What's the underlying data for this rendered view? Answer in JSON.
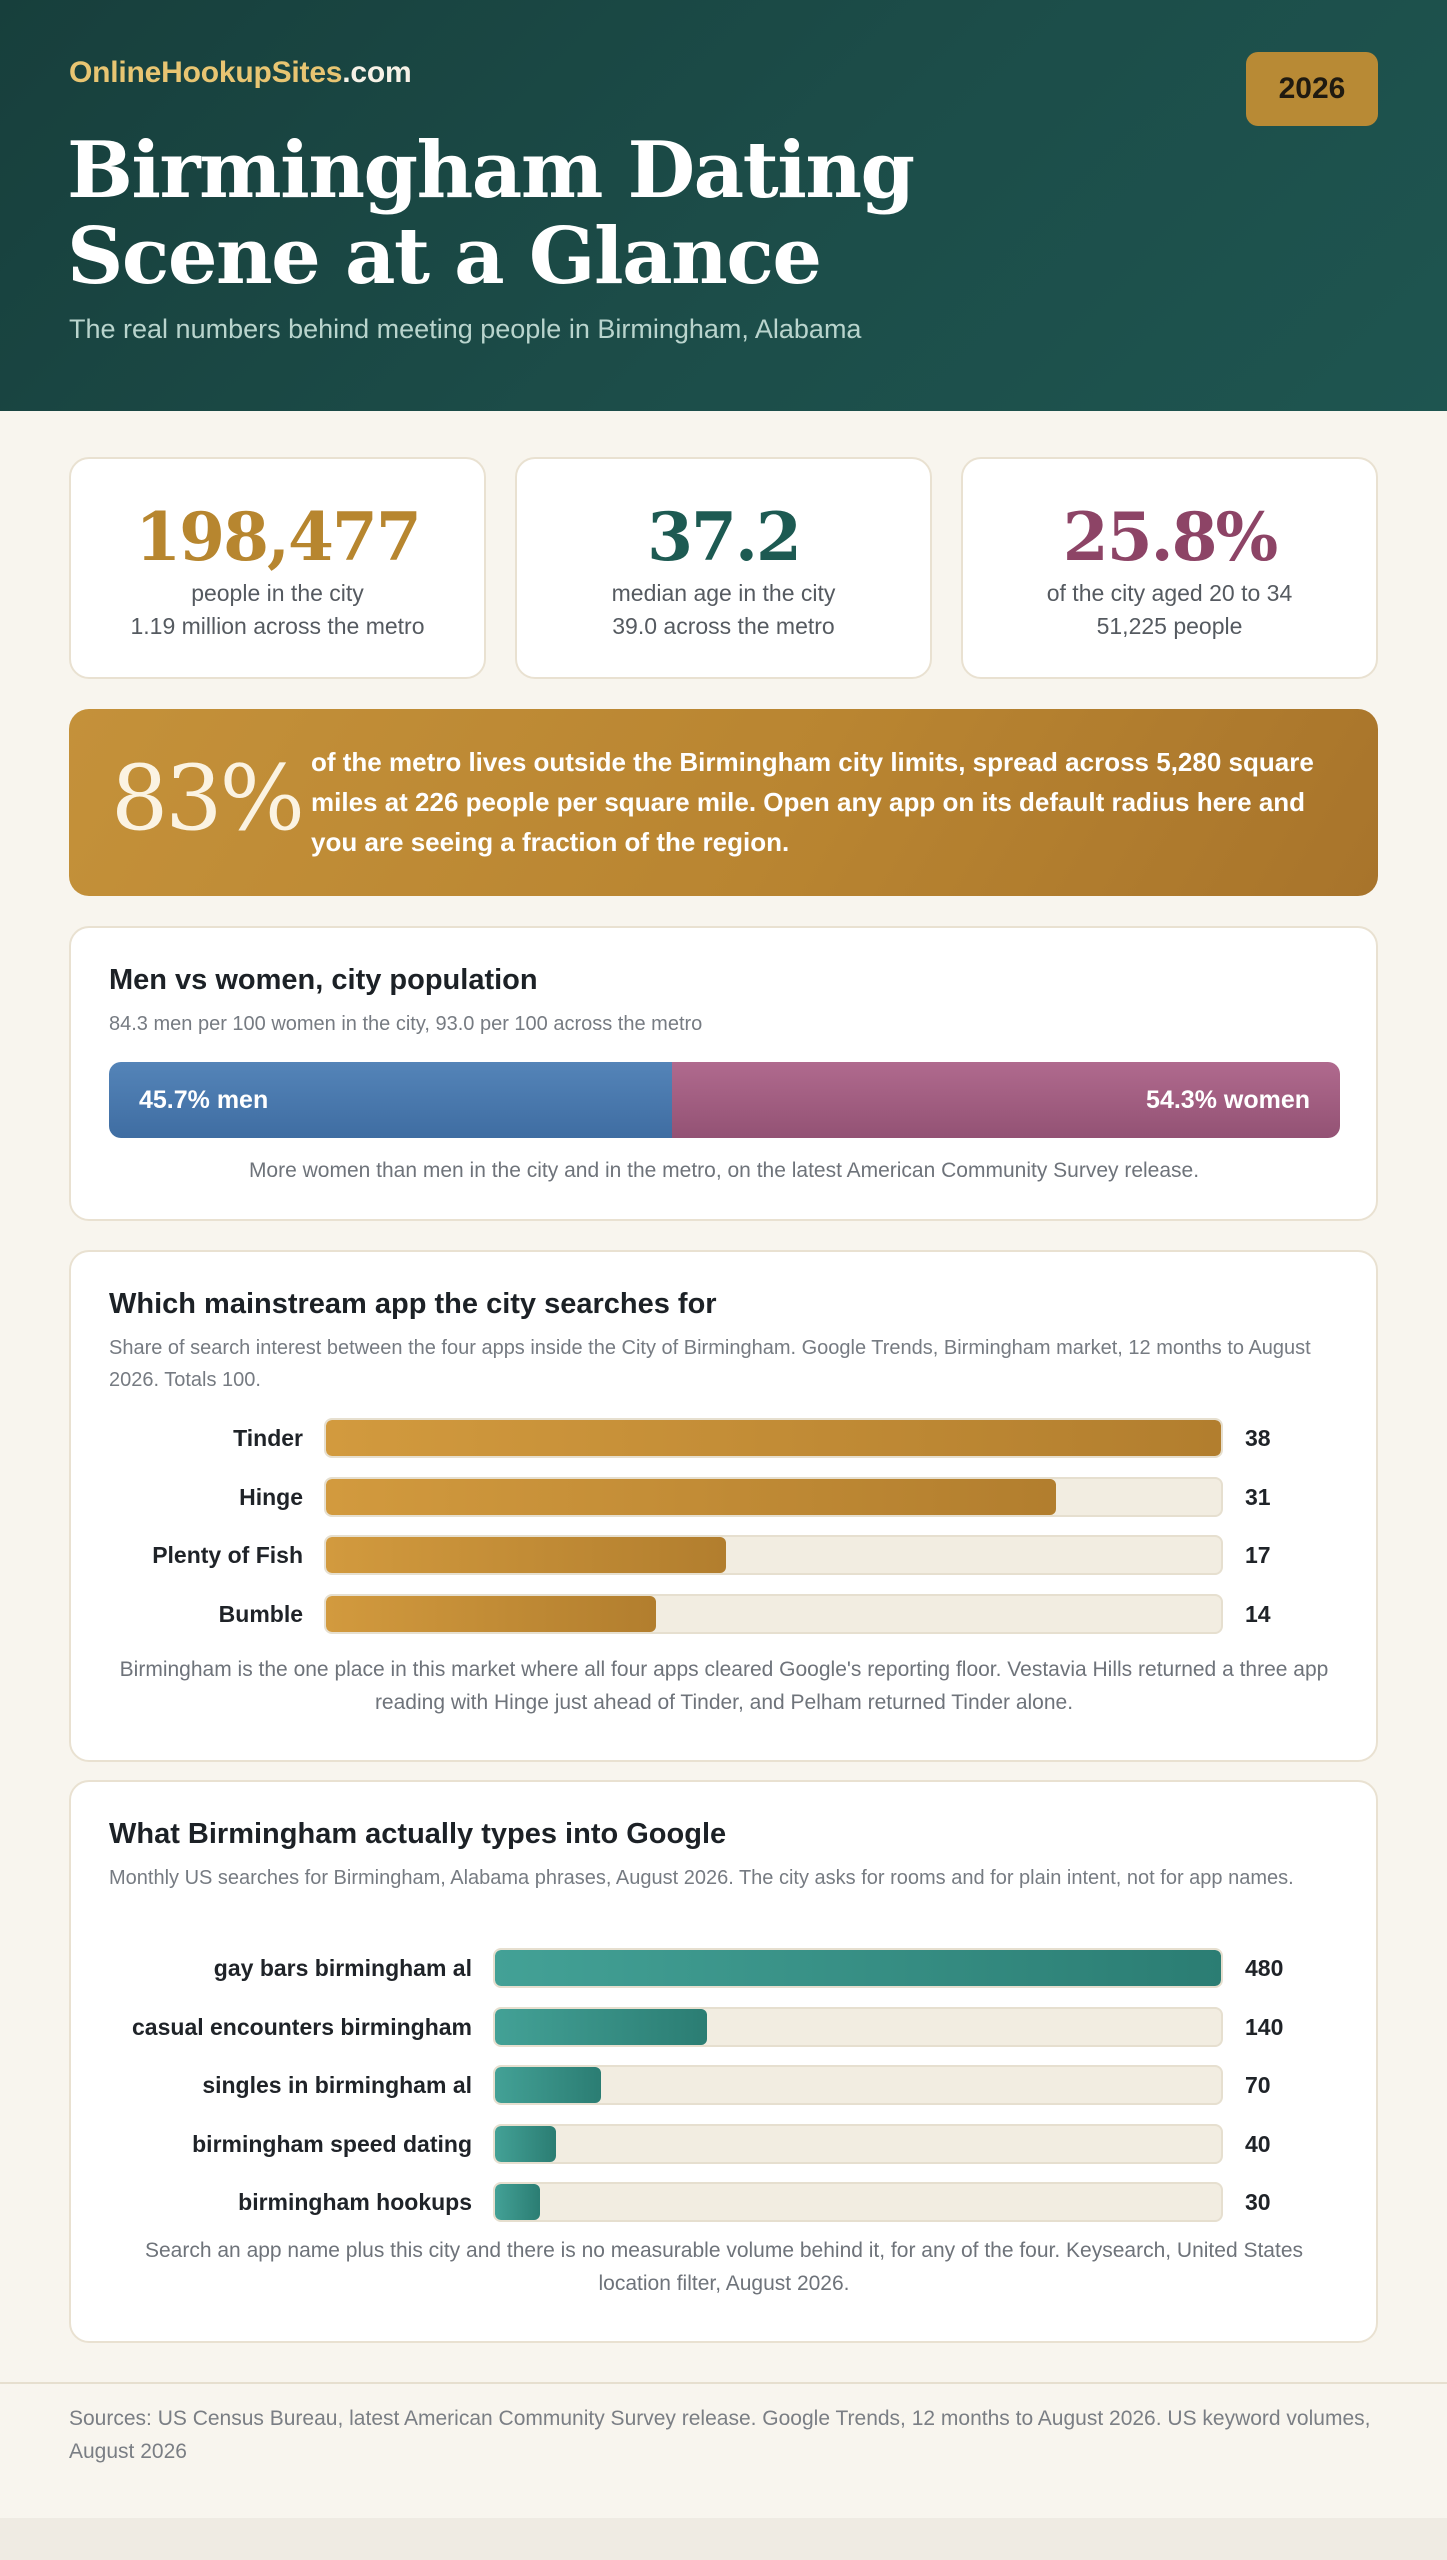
{
  "header": {
    "brand_part1": "OnlineHookupSites",
    "brand_part2": ".com",
    "year": "2026",
    "title_line1": "Birmingham Dating",
    "title_line2": "Scene at a Glance",
    "subtitle": "The real numbers behind meeting people in Birmingham, Alabama"
  },
  "stats": [
    {
      "value": "198,477",
      "line1": "people in the city",
      "line2": "1.19 million across the metro",
      "color": "#b7862f"
    },
    {
      "value": "37.2",
      "line1": "median age in the city",
      "line2": "39.0 across the metro",
      "color": "#1d5a52"
    },
    {
      "value": "25.8%",
      "line1": "of the city aged 20 to 34",
      "line2": "51,225 people",
      "color": "#8d4466"
    }
  ],
  "callout": {
    "value": "83%",
    "text": "of the metro lives outside the Birmingham city limits, spread across 5,280 square miles at 226 people per square mile. Open any app on its default radius here and you are seeing a fraction of the region."
  },
  "colors": {
    "gold": "#c4913a",
    "teal": "#2b7d73",
    "men": "#4a78ad",
    "women": "#a15f82",
    "header_bg": "#173f3c"
  },
  "chart_data": [
    {
      "type": "bar",
      "orientation": "horizontal-stacked",
      "title": "Men vs women, city population",
      "subtitle": "84.3 men per 100 women in the city, 93.0 per 100 across the metro",
      "categories": [
        "men",
        "women"
      ],
      "values": [
        45.7,
        54.3
      ],
      "labels": [
        "45.7% men",
        "54.3% women"
      ],
      "note": "More women than men in the city and in the metro, on the latest American Community Survey release."
    },
    {
      "type": "bar",
      "orientation": "horizontal",
      "title": "Which mainstream app the city searches for",
      "subtitle": "Share of search interest between the four apps inside the City of Birmingham. Google Trends, Birmingham market, 12 months to August 2026. Totals 100.",
      "categories": [
        "Tinder",
        "Hinge",
        "Plenty of Fish",
        "Bumble"
      ],
      "values": [
        38,
        31,
        17,
        14
      ],
      "xlim": [
        0,
        38
      ],
      "note": "Birmingham is the one place in this market where all four apps cleared Google's reporting floor. Vestavia Hills returned a three app reading with Hinge just ahead of Tinder, and Pelham returned Tinder alone."
    },
    {
      "type": "bar",
      "orientation": "horizontal",
      "title": "What Birmingham actually types into Google",
      "subtitle": "Monthly US searches for Birmingham, Alabama phrases, August 2026. The city asks for rooms and for plain intent, not for app names.",
      "categories": [
        "gay bars birmingham al",
        "casual encounters birmingham",
        "singles in birmingham al",
        "birmingham speed dating",
        "birmingham hookups"
      ],
      "values": [
        480,
        140,
        70,
        40,
        30
      ],
      "xlim": [
        0,
        480
      ],
      "note": "Search an app name plus this city and there is no measurable volume behind it, for any of the four. Keysearch, United States location filter, August 2026."
    }
  ],
  "footer": {
    "sources": "Sources: US Census Bureau, latest American Community Survey release. Google Trends, 12 months to August 2026. US keyword volumes, August 2026"
  }
}
